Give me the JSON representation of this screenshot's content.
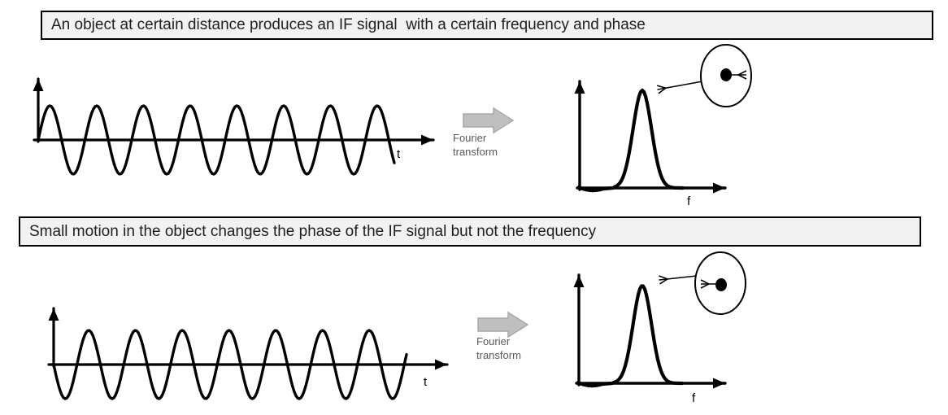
{
  "banners": {
    "top": "An object at certain distance produces an IF signal  with a certain frequency and phase",
    "bottom": "Small motion in the object changes the phase of the IF signal but not the frequency"
  },
  "labels": {
    "time_axis": "t",
    "frequency_axis": "f",
    "fourier_line1": "Fourier",
    "fourier_line2": "transform"
  },
  "colors": {
    "ink": "#000000",
    "banner_background": "#f2f2f2",
    "banner_border": "#000000",
    "block_arrow_fill": "#bfbfbf",
    "block_arrow_stroke": "#a8a8a8",
    "fourier_text": "#595959"
  },
  "diagram": {
    "top_panel": {
      "wave": {
        "cycles": 7.62,
        "starts": "up"
      },
      "phasor_angle_deg": 0
    },
    "bottom_panel": {
      "wave": {
        "cycles": 7.55,
        "starts": "down"
      },
      "phasor_angle_deg": 180
    }
  }
}
